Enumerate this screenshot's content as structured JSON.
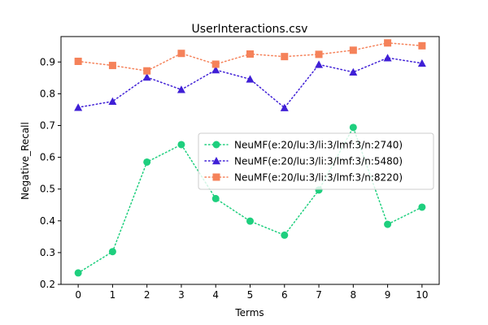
{
  "chart_data": {
    "type": "line",
    "title": "UserInteractions.csv",
    "xlabel": "Terms",
    "ylabel": "Negative_Recall",
    "x": [
      0,
      1,
      2,
      3,
      4,
      5,
      6,
      7,
      8,
      9,
      10
    ],
    "xlim": [
      -0.5,
      10.5
    ],
    "ylim": [
      0.2,
      0.98
    ],
    "yticks": [
      0.2,
      0.3,
      0.4,
      0.5,
      0.6,
      0.7,
      0.8,
      0.9
    ],
    "grid": false,
    "legend_position": "center-right",
    "series": [
      {
        "name": "NeuMF(e:20/lu:3/li:3/lmf:3/n:2740)",
        "color": "#1ecf7e",
        "marker": "circle",
        "linestyle": "dotted",
        "values": [
          0.236,
          0.303,
          0.585,
          0.64,
          0.47,
          0.399,
          0.355,
          0.497,
          0.694,
          0.389,
          0.443
        ]
      },
      {
        "name": "NeuMF(e:20/lu:3/li:3/lmf:3/n:5480)",
        "color": "#3f1fd6",
        "marker": "triangle",
        "linestyle": "dotted",
        "values": [
          0.757,
          0.776,
          0.852,
          0.813,
          0.875,
          0.846,
          0.756,
          0.892,
          0.868,
          0.913,
          0.896
        ]
      },
      {
        "name": "NeuMF(e:20/lu:3/li:3/lmf:3/n:8220)",
        "color": "#f5825a",
        "marker": "square",
        "linestyle": "dotted",
        "values": [
          0.902,
          0.889,
          0.872,
          0.927,
          0.893,
          0.925,
          0.917,
          0.924,
          0.937,
          0.96,
          0.951
        ]
      }
    ]
  }
}
